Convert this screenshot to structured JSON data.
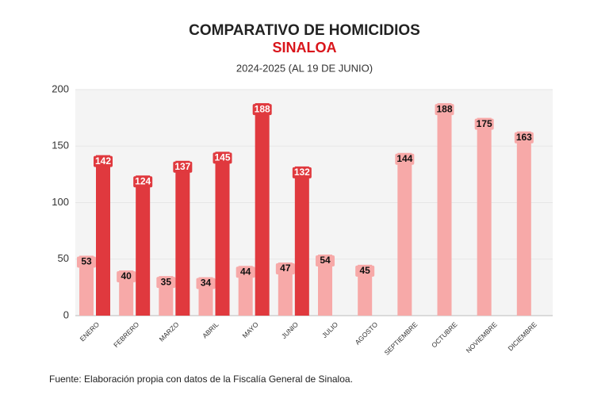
{
  "chart_data": {
    "type": "bar",
    "title": "COMPARATIVO DE HOMICIDIOS",
    "subtitle": "SINALOA",
    "period": "2024-2025 (AL 19 DE JUNIO)",
    "source": "Fuente: Elaboración propia con datos de la Fiscalía General de Sinaloa.",
    "categories": [
      "ENERO",
      "FEBRERO",
      "MARZO",
      "ABRIL",
      "MAYO",
      "JUNIO",
      "JULIO",
      "AGOSTO",
      "SEPTIEMBRE",
      "OCTUBRE",
      "NOVIEMBRE",
      "DICIEMBRE"
    ],
    "series": [
      {
        "color": "#f7a9a8",
        "values": [
          53,
          40,
          35,
          34,
          44,
          47,
          54,
          45,
          144,
          188,
          175,
          163
        ]
      },
      {
        "color": "#e0393e",
        "values": [
          142,
          124,
          137,
          145,
          188,
          132,
          null,
          null,
          null,
          null,
          null,
          null
        ]
      }
    ],
    "ylim": [
      0,
      200
    ],
    "yticks": [
      0,
      50,
      100,
      150,
      200
    ],
    "grid": true
  }
}
